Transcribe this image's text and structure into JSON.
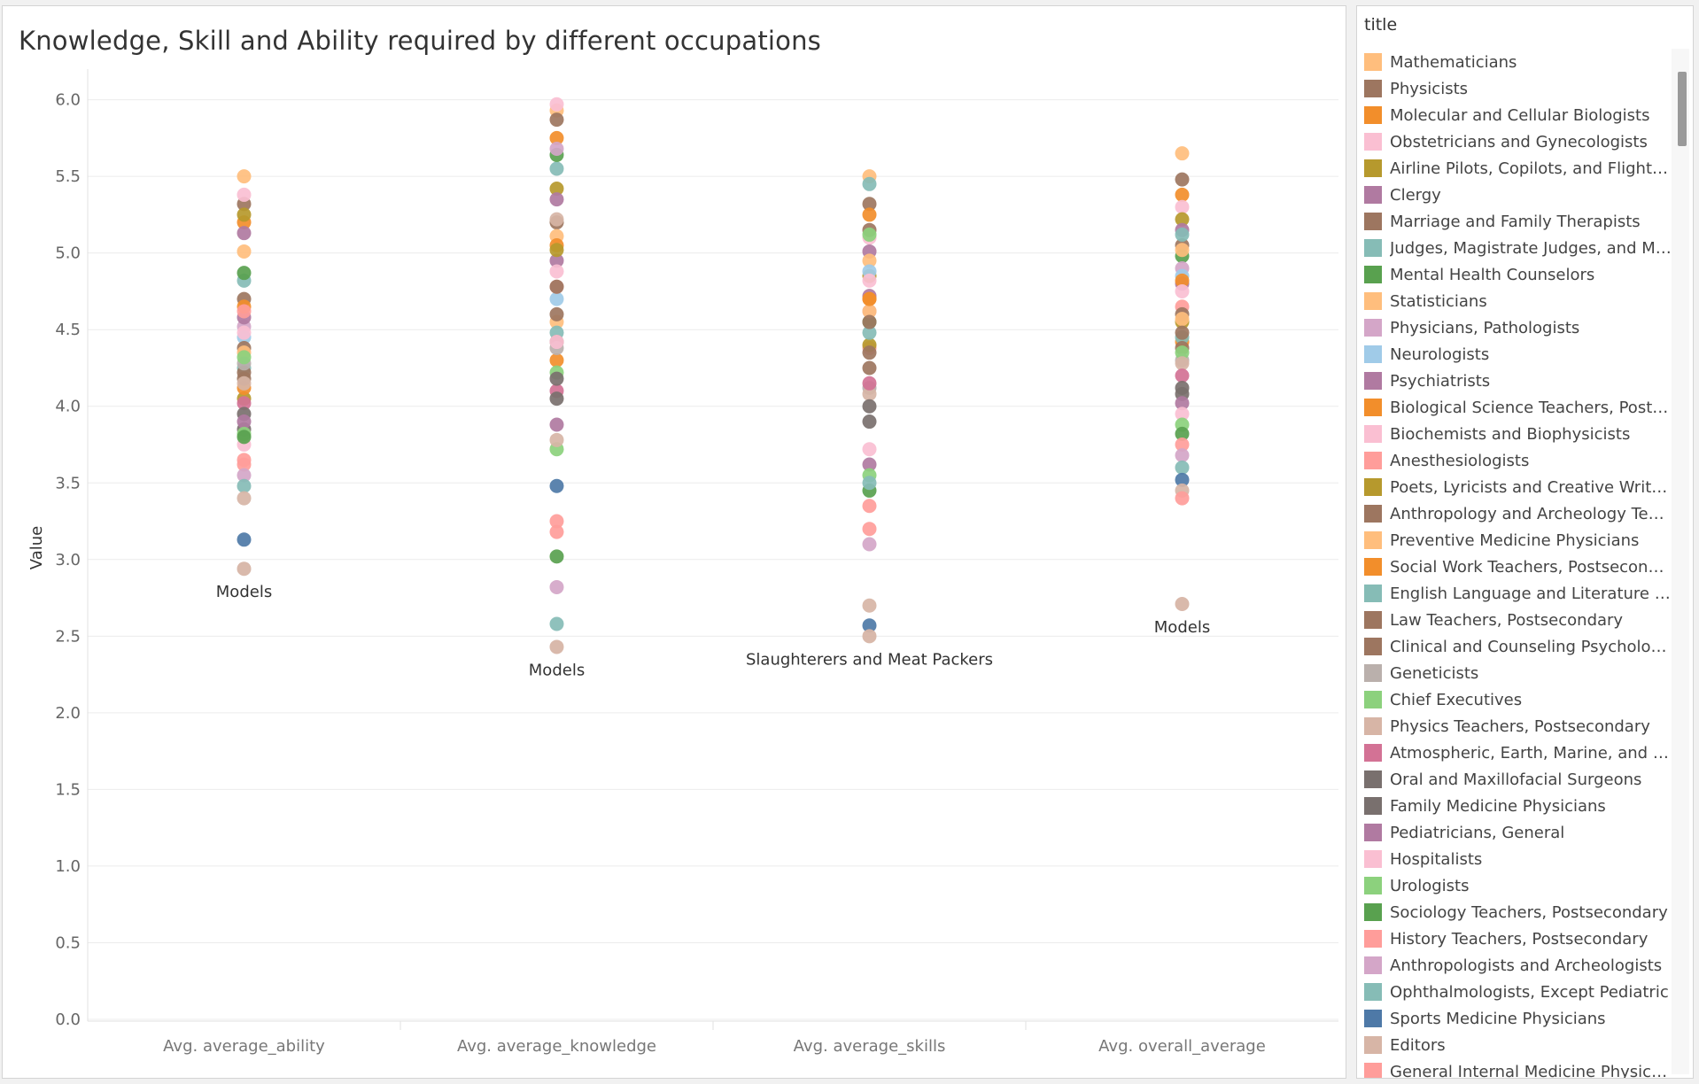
{
  "chart_data": {
    "type": "scatter",
    "title": "Knowledge, Skill and Ability required by different occupations",
    "ylabel": "Value",
    "xlabel": "",
    "ylim": [
      0,
      6.2
    ],
    "yticks": [
      "0.0",
      "0.5",
      "1.0",
      "1.5",
      "2.0",
      "2.5",
      "3.0",
      "3.5",
      "4.0",
      "4.5",
      "5.0",
      "5.5",
      "6.0"
    ],
    "categories": [
      "Avg. average_ability",
      "Avg. average_knowledge",
      "Avg. average_skills",
      "Avg. overall_average"
    ],
    "grid": true,
    "legend_title": "title",
    "legend_position": "right",
    "annotations": [
      {
        "category": "Avg. average_ability",
        "label": "Models",
        "value": 2.94
      },
      {
        "category": "Avg. average_knowledge",
        "label": "Models",
        "value": 2.43
      },
      {
        "category": "Avg. average_skills",
        "label": "Slaughterers and Meat Packers",
        "value": 2.5
      },
      {
        "category": "Avg. overall_average",
        "label": "Models",
        "value": 2.71
      }
    ],
    "series": [
      {
        "name": "Mathematicians",
        "color": "#ffbe7d",
        "values": [
          5.5,
          5.93,
          5.5,
          5.65
        ]
      },
      {
        "name": "Physicists",
        "color": "#9d7660",
        "values": [
          5.32,
          5.87,
          5.32,
          5.48
        ]
      },
      {
        "name": "Molecular and Cellular Biologists",
        "color": "#f28e2b",
        "values": [
          5.2,
          5.75,
          5.25,
          5.38
        ]
      },
      {
        "name": "Obstetricians and Gynecologists",
        "color": "#fabfd2",
        "values": [
          5.38,
          5.97,
          5.1,
          5.3
        ]
      },
      {
        "name": "Airline Pilots, Copilots, and Flight E..",
        "color": "#b6992d",
        "values": [
          5.25,
          5.42,
          4.85,
          5.22
        ]
      },
      {
        "name": "Clergy",
        "color": "#b07aa1",
        "values": [
          5.13,
          5.35,
          5.01,
          5.15
        ]
      },
      {
        "name": "Marriage and Family Therapists",
        "color": "#9d7660",
        "values": [
          4.7,
          5.2,
          5.15,
          5.05
        ]
      },
      {
        "name": "Judges, Magistrate Judges, and Ma..",
        "color": "#86bcb6",
        "values": [
          4.82,
          5.55,
          5.45,
          5.12
        ]
      },
      {
        "name": "Mental Health Counselors",
        "color": "#59a14f",
        "values": [
          4.87,
          5.64,
          4.55,
          4.98
        ]
      },
      {
        "name": "Statisticians",
        "color": "#ffbe7d",
        "values": [
          5.01,
          5.11,
          4.95,
          5.02
        ]
      },
      {
        "name": "Physicians, Pathologists",
        "color": "#d4a6c8",
        "values": [
          4.52,
          5.68,
          4.62,
          4.9
        ]
      },
      {
        "name": "Neurologists",
        "color": "#a0cbe8",
        "values": [
          4.45,
          4.7,
          4.88,
          4.85
        ]
      },
      {
        "name": "Psychiatrists",
        "color": "#b07aa1",
        "values": [
          4.58,
          4.95,
          4.72,
          4.8
        ]
      },
      {
        "name": "Biological Science Teachers, Postse..",
        "color": "#f28e2b",
        "values": [
          4.65,
          5.05,
          4.7,
          4.82
        ]
      },
      {
        "name": "Biochemists and Biophysicists",
        "color": "#fabfd2",
        "values": [
          4.48,
          4.88,
          4.82,
          4.75
        ]
      },
      {
        "name": "Anesthesiologists",
        "color": "#ff9d9a",
        "values": [
          4.62,
          4.78,
          4.38,
          4.65
        ]
      },
      {
        "name": "Poets, Lyricists and Creative Writers",
        "color": "#b6992d",
        "values": [
          4.05,
          5.02,
          4.4,
          4.55
        ]
      },
      {
        "name": "Anthropology and Archeology Teac..",
        "color": "#9d7660",
        "values": [
          4.38,
          4.78,
          4.35,
          4.6
        ]
      },
      {
        "name": "Preventive Medicine Physicians",
        "color": "#ffbe7d",
        "values": [
          4.35,
          4.55,
          4.62,
          4.57
        ]
      },
      {
        "name": "Social Work Teachers, Postseconda..",
        "color": "#f28e2b",
        "values": [
          4.12,
          4.3,
          4.7,
          4.42
        ]
      },
      {
        "name": "English Language and Literature Te..",
        "color": "#86bcb6",
        "values": [
          4.25,
          4.48,
          4.48,
          4.45
        ]
      },
      {
        "name": "Law Teachers, Postsecondary",
        "color": "#9d7660",
        "values": [
          4.22,
          4.6,
          4.55,
          4.48
        ]
      },
      {
        "name": "Clinical and Counseling Psychologis..",
        "color": "#9d7660",
        "values": [
          4.18,
          4.42,
          4.25,
          4.38
        ]
      },
      {
        "name": "Geneticists",
        "color": "#bab0ac",
        "values": [
          4.28,
          4.38,
          4.12,
          4.3
        ]
      },
      {
        "name": "Chief Executives",
        "color": "#8cd17d",
        "values": [
          4.32,
          4.22,
          5.12,
          4.35
        ]
      },
      {
        "name": "Physics Teachers, Postsecondary",
        "color": "#d7b5a6",
        "values": [
          4.15,
          5.22,
          4.08,
          4.28
        ]
      },
      {
        "name": "Atmospheric, Earth, Marine, and Sp..",
        "color": "#d37295",
        "values": [
          4.02,
          4.1,
          4.15,
          4.2
        ]
      },
      {
        "name": "Oral and Maxillofacial Surgeons",
        "color": "#79706e",
        "values": [
          3.95,
          4.18,
          3.9,
          4.12
        ]
      },
      {
        "name": "Family Medicine Physicians",
        "color": "#79706e",
        "values": [
          3.85,
          4.05,
          4.0,
          4.08
        ]
      },
      {
        "name": "Pediatricians, General",
        "color": "#b07aa1",
        "values": [
          3.9,
          3.88,
          3.62,
          4.02
        ]
      },
      {
        "name": "Hospitalists",
        "color": "#fabfd2",
        "values": [
          3.75,
          4.42,
          3.72,
          3.95
        ]
      },
      {
        "name": "Urologists",
        "color": "#8cd17d",
        "values": [
          3.82,
          3.72,
          3.55,
          3.88
        ]
      },
      {
        "name": "Sociology Teachers, Postsecondary",
        "color": "#59a14f",
        "values": [
          3.8,
          3.02,
          3.45,
          3.82
        ]
      },
      {
        "name": "History Teachers, Postsecondary",
        "color": "#ff9d9a",
        "values": [
          3.62,
          3.25,
          3.2,
          3.75
        ]
      },
      {
        "name": "Anthropologists and Archeologists",
        "color": "#d4a6c8",
        "values": [
          3.55,
          2.82,
          3.1,
          3.68
        ]
      },
      {
        "name": "Ophthalmologists, Except Pediatric",
        "color": "#86bcb6",
        "values": [
          3.48,
          2.58,
          3.5,
          3.6
        ]
      },
      {
        "name": "Sports Medicine Physicians",
        "color": "#4e79a7",
        "values": [
          3.13,
          3.48,
          2.57,
          3.52
        ]
      },
      {
        "name": "Editors",
        "color": "#d7b5a6",
        "values": [
          3.4,
          3.78,
          2.7,
          3.45
        ]
      },
      {
        "name": "General Internal Medicine Physicians",
        "color": "#ff9d9a",
        "values": [
          3.65,
          3.18,
          3.35,
          3.4
        ]
      }
    ]
  }
}
